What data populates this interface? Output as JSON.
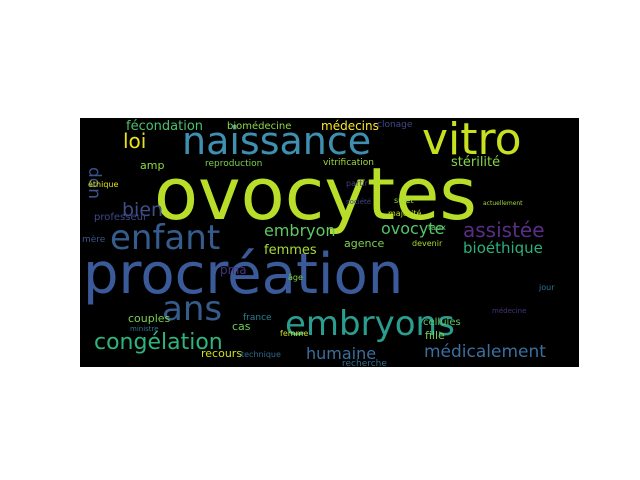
{
  "cloud": {
    "words": [
      {
        "text": "ovocytes",
        "color": "#b8de29"
      },
      {
        "text": "procréation",
        "color": "#3b5a9a"
      },
      {
        "text": "embryons",
        "color": "#2a9d8f"
      },
      {
        "text": "naissance",
        "color": "#3e8fb0"
      },
      {
        "text": "vitro",
        "color": "#c8e020"
      },
      {
        "text": "enfant",
        "color": "#365c8d"
      },
      {
        "text": "ans",
        "color": "#365c8d"
      },
      {
        "text": "congélation",
        "color": "#2fb47c"
      },
      {
        "text": "assistée",
        "color": "#5b2d86"
      },
      {
        "text": "médicalement",
        "color": "#3b6fa0"
      },
      {
        "text": "humaine",
        "color": "#3b6fa0"
      },
      {
        "text": "embryon",
        "color": "#5ec962"
      },
      {
        "text": "ovocyte",
        "color": "#52c569"
      },
      {
        "text": "bioéthique",
        "color": "#2ab07f"
      },
      {
        "text": "loi",
        "color": "#e8e419"
      },
      {
        "text": "bien",
        "color": "#3d4e8a"
      },
      {
        "text": "don",
        "color": "#3b528b"
      },
      {
        "text": "fécondation",
        "color": "#4ac16d"
      },
      {
        "text": "biomédecine",
        "color": "#8fd744"
      },
      {
        "text": "médecins",
        "color": "#fde725"
      },
      {
        "text": "stérilité",
        "color": "#86d549"
      },
      {
        "text": "femmes",
        "color": "#a8db34"
      },
      {
        "text": "agence",
        "color": "#7ad151"
      },
      {
        "text": "pma",
        "color": "#46327e"
      },
      {
        "text": "couples",
        "color": "#7ad151"
      },
      {
        "text": "cellules",
        "color": "#5ec962"
      },
      {
        "text": "fille",
        "color": "#7ad151"
      },
      {
        "text": "recours",
        "color": "#d0e11c"
      },
      {
        "text": "cas",
        "color": "#6ece58"
      },
      {
        "text": "amp",
        "color": "#95d840"
      },
      {
        "text": "professeur",
        "color": "#3e4989"
      },
      {
        "text": "vitrification",
        "color": "#9fda3a"
      },
      {
        "text": "reproduction",
        "color": "#7ad151"
      },
      {
        "text": "clonage",
        "color": "#3f4889"
      },
      {
        "text": "sujet",
        "color": "#9fda3a"
      },
      {
        "text": "recherche",
        "color": "#2c728e"
      },
      {
        "text": "majorité",
        "color": "#bddf26"
      },
      {
        "text": "devenir",
        "color": "#a5db36"
      },
      {
        "text": "france",
        "color": "#26828e"
      },
      {
        "text": "technique",
        "color": "#31688e"
      },
      {
        "text": "éthique",
        "color": "#dde318"
      },
      {
        "text": "mère",
        "color": "#39568c"
      },
      {
        "text": "âge",
        "color": "#7fd34e"
      },
      {
        "text": "partir",
        "color": "#433e85"
      },
      {
        "text": "société",
        "color": "#3e4989"
      },
      {
        "text": "taux",
        "color": "#5ec962"
      },
      {
        "text": "femme",
        "color": "#c8e020"
      },
      {
        "text": "ministre",
        "color": "#2c728e"
      },
      {
        "text": "jour",
        "color": "#2a788e"
      },
      {
        "text": "médecine",
        "color": "#46327e"
      },
      {
        "text": "actuellement",
        "color": "#a0da39"
      }
    ]
  }
}
